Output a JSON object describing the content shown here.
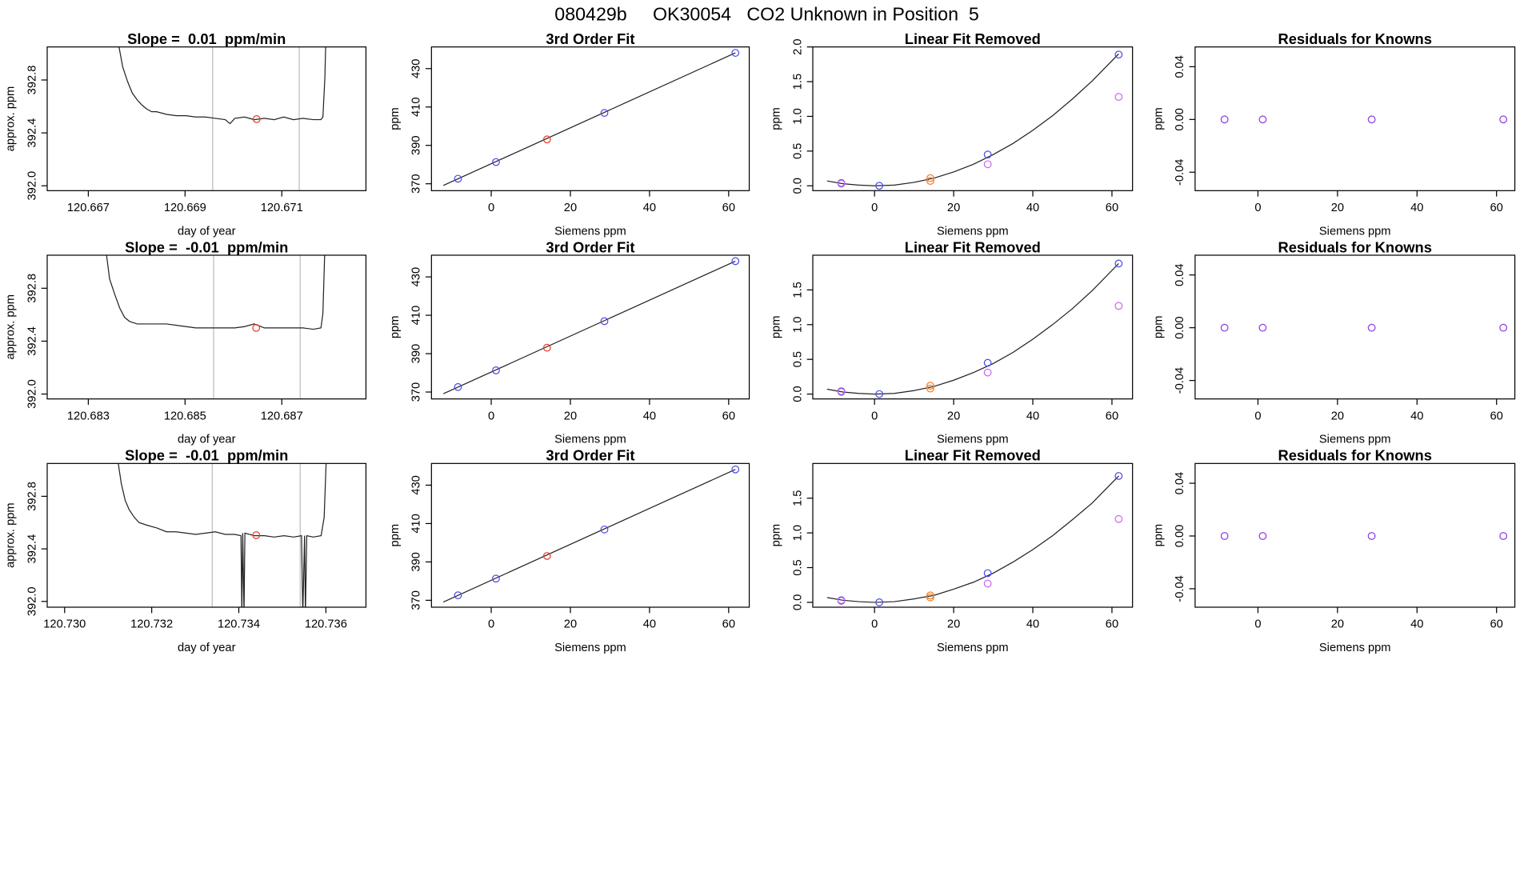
{
  "title": "080429b     OK30054   CO2 Unknown in Position  5",
  "chart_data": [
    {
      "type": "line",
      "title": "Slope =  0.01  ppm/min",
      "xlabel": "day of year",
      "ylabel": "approx. ppm",
      "xlim": [
        120.66615,
        120.67274
      ],
      "ylim": [
        391.963,
        393.05
      ],
      "xticks": [
        120.667,
        120.669,
        120.671
      ],
      "yticks": [
        {
          "value": 392,
          "label": "392.0"
        },
        392.4,
        392.8
      ],
      "vlines": {
        "color": "#bbbbbb",
        "values": [
          120.66957,
          120.67136
        ]
      },
      "series": [
        {
          "type": "line",
          "color": "#222222",
          "x": [
            120.66761,
            120.66771,
            120.66781,
            120.66791,
            120.66801,
            120.66811,
            120.66821,
            120.66831,
            120.66841,
            120.66862,
            120.66882,
            120.66902,
            120.66922,
            120.66942,
            120.66963,
            120.66983,
            120.66993,
            120.67003,
            120.67023,
            120.67043,
            120.67064,
            120.67084,
            120.67104,
            120.67124,
            120.67144,
            120.67165,
            120.67181,
            120.67185,
            120.67189,
            120.67191
          ],
          "values": [
            393.1,
            392.9,
            392.79,
            392.7,
            392.65,
            392.61,
            392.58,
            392.56,
            392.56,
            392.54,
            392.53,
            392.53,
            392.52,
            392.52,
            392.51,
            392.5,
            392.47,
            392.51,
            392.52,
            392.5,
            392.51,
            392.5,
            392.52,
            392.5,
            392.51,
            392.5,
            392.5,
            392.52,
            392.81,
            393.1
          ]
        },
        {
          "type": "scatter",
          "color": "#e8392a",
          "x": [
            120.67048
          ],
          "values": [
            392.504
          ]
        }
      ]
    },
    {
      "type": "scatter",
      "title": "3rd Order Fit",
      "xlabel": "Siemens ppm",
      "ylabel": "ppm",
      "xlim": [
        -15.1,
        65.2
      ],
      "ylim": [
        366.4,
        441.3
      ],
      "xticks": [
        0,
        20,
        40,
        60
      ],
      "yticks": [
        370,
        390,
        410,
        430
      ],
      "series": [
        {
          "type": "line",
          "color": "#222222",
          "x": [
            -12.1,
            61.7
          ],
          "values": [
            369.1,
            438.2
          ]
        },
        {
          "type": "scatter",
          "color": "#4a4ae8",
          "x": [
            -8.4,
            1.2,
            28.6,
            61.7
          ],
          "values": [
            372.6,
            381.3,
            406.9,
            438.2
          ]
        },
        {
          "type": "scatter",
          "color": "#e8392a",
          "x": [
            14.1
          ],
          "values": [
            393.1
          ]
        }
      ]
    },
    {
      "type": "scatter",
      "title": "Linear Fit Removed",
      "xlabel": "Siemens ppm",
      "ylabel": "ppm",
      "xlim": [
        -15.6,
        65.2
      ],
      "ylim": [
        -0.07,
        2.0
      ],
      "xticks": [
        0,
        20,
        40,
        60
      ],
      "yticks": [
        {
          "value": 0,
          "label": "0.0"
        },
        0.5,
        {
          "value": 1,
          "label": "1.0"
        },
        1.5,
        {
          "value": 2,
          "label": "2.0"
        }
      ],
      "series": [
        {
          "type": "line",
          "color": "#222222",
          "x": [
            -12,
            -8,
            -4,
            0,
            5,
            10,
            15,
            20,
            25,
            30,
            35,
            40,
            45,
            50,
            55,
            61.7
          ],
          "values": [
            0.07,
            0.03,
            0.01,
            0,
            0.01,
            0.05,
            0.11,
            0.2,
            0.31,
            0.45,
            0.61,
            0.8,
            1.01,
            1.25,
            1.51,
            1.9
          ]
        },
        {
          "type": "scatter",
          "color": "#4a4ae8",
          "x": [
            -8.4,
            1.2,
            28.6,
            61.7
          ],
          "values": [
            0.04,
            0,
            0.45,
            1.89
          ]
        },
        {
          "type": "scatter",
          "color": "#f07a28",
          "x": [
            14.1,
            14.1
          ],
          "values": [
            0.11,
            0.07
          ]
        },
        {
          "type": "scatter",
          "color": "#cc66ee",
          "x": [
            -8.4,
            28.6,
            61.7
          ],
          "values": [
            0.03,
            0.31,
            1.28
          ]
        }
      ]
    },
    {
      "type": "scatter",
      "title": "Residuals for Knowns",
      "xlabel": "Siemens ppm",
      "ylabel": "ppm",
      "xlim": [
        -15.8,
        64.6
      ],
      "ylim": [
        -0.054,
        0.055
      ],
      "xticks": [
        0,
        20,
        40,
        60
      ],
      "yticks": [
        -0.04,
        {
          "value": 0,
          "label": "0.00"
        },
        0.04
      ],
      "series": [
        {
          "type": "scatter",
          "color": "#8a3ce0",
          "x": [
            -8.4,
            1.2,
            28.6,
            61.7
          ],
          "values": [
            0,
            0,
            0,
            0
          ]
        }
      ]
    },
    {
      "type": "line",
      "title": "Slope =  -0.01  ppm/min",
      "xlabel": "day of year",
      "ylabel": "approx. ppm",
      "xlim": [
        120.68215,
        120.68874
      ],
      "ylim": [
        391.963,
        393.05
      ],
      "xticks": [
        120.683,
        120.685,
        120.687
      ],
      "yticks": [
        {
          "value": 392,
          "label": "392.0"
        },
        392.4,
        392.8
      ],
      "vlines": {
        "color": "#bbbbbb",
        "values": [
          120.68559,
          120.68738
        ]
      },
      "series": [
        {
          "type": "line",
          "color": "#222222",
          "x": [
            120.68336,
            120.68344,
            120.68355,
            120.68365,
            120.68375,
            120.68385,
            120.68401,
            120.68421,
            120.68441,
            120.68462,
            120.68482,
            120.68502,
            120.68522,
            120.68542,
            120.68563,
            120.68583,
            120.68603,
            120.68623,
            120.68643,
            120.68664,
            120.68684,
            120.68704,
            120.68724,
            120.68744,
            120.68765,
            120.68781,
            120.68785,
            120.68789
          ],
          "values": [
            393.1,
            392.87,
            392.75,
            392.65,
            392.58,
            392.55,
            392.53,
            392.53,
            392.53,
            392.53,
            392.52,
            392.51,
            392.5,
            392.5,
            392.5,
            392.5,
            392.5,
            392.51,
            392.53,
            392.5,
            392.5,
            392.5,
            392.5,
            392.5,
            392.49,
            392.5,
            392.61,
            393.1
          ]
        },
        {
          "type": "scatter",
          "color": "#e8392a",
          "x": [
            120.68647
          ],
          "values": [
            392.5
          ]
        }
      ]
    },
    {
      "type": "scatter",
      "title": "3rd Order Fit",
      "xlabel": "Siemens ppm",
      "ylabel": "ppm",
      "xlim": [
        -15.1,
        65.2
      ],
      "ylim": [
        366.4,
        441.3
      ],
      "xticks": [
        0,
        20,
        40,
        60
      ],
      "yticks": [
        370,
        390,
        410,
        430
      ],
      "series": [
        {
          "type": "line",
          "color": "#222222",
          "x": [
            -12.1,
            61.7
          ],
          "values": [
            369.1,
            438.2
          ]
        },
        {
          "type": "scatter",
          "color": "#4a4ae8",
          "x": [
            -8.4,
            1.2,
            28.6,
            61.7
          ],
          "values": [
            372.6,
            381.3,
            406.9,
            438.2
          ]
        },
        {
          "type": "scatter",
          "color": "#e8392a",
          "x": [
            14.1
          ],
          "values": [
            393.1
          ]
        }
      ]
    },
    {
      "type": "scatter",
      "title": "Linear Fit Removed",
      "xlabel": "Siemens ppm",
      "ylabel": "ppm",
      "xlim": [
        -15.6,
        65.2
      ],
      "ylim": [
        -0.07,
        2.0
      ],
      "xticks": [
        0,
        20,
        40,
        60
      ],
      "yticks": [
        {
          "value": 0,
          "label": "0.0"
        },
        0.5,
        {
          "value": 1,
          "label": "1.0"
        },
        1.5
      ],
      "series": [
        {
          "type": "line",
          "color": "#222222",
          "x": [
            -12,
            -8,
            -4,
            0,
            5,
            10,
            15,
            20,
            25,
            30,
            35,
            40,
            45,
            50,
            55,
            61.7
          ],
          "values": [
            0.07,
            0.03,
            0.01,
            0,
            0.01,
            0.05,
            0.11,
            0.2,
            0.31,
            0.44,
            0.6,
            0.79,
            1.0,
            1.23,
            1.49,
            1.88
          ]
        },
        {
          "type": "scatter",
          "color": "#4a4ae8",
          "x": [
            -8.4,
            1.2,
            28.6,
            61.7
          ],
          "values": [
            0.04,
            0,
            0.45,
            1.88
          ]
        },
        {
          "type": "scatter",
          "color": "#f07a28",
          "x": [
            14.1,
            14.1
          ],
          "values": [
            0.12,
            0.08
          ]
        },
        {
          "type": "scatter",
          "color": "#cc66ee",
          "x": [
            -8.4,
            28.6,
            61.7
          ],
          "values": [
            0.03,
            0.31,
            1.27
          ]
        }
      ]
    },
    {
      "type": "scatter",
      "title": "Residuals for Knowns",
      "xlabel": "Siemens ppm",
      "ylabel": "ppm",
      "xlim": [
        -15.8,
        64.6
      ],
      "ylim": [
        -0.054,
        0.055
      ],
      "xticks": [
        0,
        20,
        40,
        60
      ],
      "yticks": [
        -0.04,
        {
          "value": 0,
          "label": "0.00"
        },
        0.04
      ],
      "series": [
        {
          "type": "scatter",
          "color": "#8a3ce0",
          "x": [
            -8.4,
            1.2,
            28.6,
            61.7
          ],
          "values": [
            0,
            0,
            0,
            0
          ]
        }
      ]
    },
    {
      "type": "line",
      "title": "Slope =  -0.01  ppm/min",
      "xlabel": "day of year",
      "ylabel": "approx. ppm",
      "xlim": [
        120.7296,
        120.73692
      ],
      "ylim": [
        391.956,
        393.05
      ],
      "xticks": [
        {
          "value": 120.73,
          "label": "120.730"
        },
        120.732,
        120.734,
        120.736
      ],
      "yticks": [
        {
          "value": 392,
          "label": "392.0"
        },
        392.4,
        392.8
      ],
      "vlines": {
        "color": "#bbbbbb",
        "values": [
          120.73339,
          120.73541
        ]
      },
      "series": [
        {
          "type": "line",
          "color": "#222222",
          "x": [
            120.73121,
            120.7313,
            120.73139,
            120.73148,
            120.7316,
            120.73171,
            120.73189,
            120.73211,
            120.73234,
            120.73256,
            120.73279,
            120.73301,
            120.73324,
            120.73346,
            120.73369,
            120.73391,
            120.73405,
            120.73407,
            120.73409,
            120.73412,
            120.73414,
            120.73436,
            120.73459,
            120.73481,
            120.73504,
            120.73526,
            120.73544,
            120.73547,
            120.73551,
            120.73553,
            120.73556,
            120.73571,
            120.73589,
            120.73596,
            120.73601
          ],
          "values": [
            393.1,
            392.9,
            392.77,
            392.7,
            392.64,
            392.6,
            392.58,
            392.56,
            392.53,
            392.53,
            392.52,
            392.51,
            392.52,
            392.53,
            392.51,
            392.51,
            392.5,
            391.9,
            392.52,
            391.9,
            392.52,
            392.5,
            392.5,
            392.49,
            392.5,
            392.49,
            392.5,
            391.9,
            392.5,
            391.9,
            392.5,
            392.49,
            392.5,
            392.64,
            393.1
          ]
        },
        {
          "type": "scatter",
          "color": "#e8392a",
          "x": [
            120.7344
          ],
          "values": [
            392.504
          ]
        }
      ]
    },
    {
      "type": "scatter",
      "title": "3rd Order Fit",
      "xlabel": "Siemens ppm",
      "ylabel": "ppm",
      "xlim": [
        -15.1,
        65.2
      ],
      "ylim": [
        366.4,
        441.3
      ],
      "xticks": [
        0,
        20,
        40,
        60
      ],
      "yticks": [
        370,
        390,
        410,
        430
      ],
      "series": [
        {
          "type": "line",
          "color": "#222222",
          "x": [
            -12.1,
            61.7
          ],
          "values": [
            369.1,
            438.2
          ]
        },
        {
          "type": "scatter",
          "color": "#4a4ae8",
          "x": [
            -8.4,
            1.2,
            28.6,
            61.7
          ],
          "values": [
            372.6,
            381.3,
            406.9,
            438.2
          ]
        },
        {
          "type": "scatter",
          "color": "#e8392a",
          "x": [
            14.1
          ],
          "values": [
            393.1
          ]
        }
      ]
    },
    {
      "type": "scatter",
      "title": "Linear Fit Removed",
      "xlabel": "Siemens ppm",
      "ylabel": "ppm",
      "xlim": [
        -15.6,
        65.2
      ],
      "ylim": [
        -0.07,
        2.0
      ],
      "xticks": [
        0,
        20,
        40,
        60
      ],
      "yticks": [
        {
          "value": 0,
          "label": "0.0"
        },
        0.5,
        {
          "value": 1,
          "label": "1.0"
        },
        1.5
      ],
      "series": [
        {
          "type": "line",
          "color": "#222222",
          "x": [
            -12,
            -8,
            -4,
            0,
            5,
            10,
            15,
            20,
            25,
            30,
            35,
            40,
            45,
            50,
            55,
            61.7
          ],
          "values": [
            0.07,
            0.03,
            0.01,
            0,
            0.01,
            0.05,
            0.1,
            0.19,
            0.29,
            0.42,
            0.58,
            0.76,
            0.96,
            1.19,
            1.43,
            1.82
          ]
        },
        {
          "type": "scatter",
          "color": "#4a4ae8",
          "x": [
            -8.4,
            1.2,
            28.6,
            61.7
          ],
          "values": [
            0.03,
            0,
            0.42,
            1.82
          ]
        },
        {
          "type": "scatter",
          "color": "#f07a28",
          "x": [
            14.1,
            14.1
          ],
          "values": [
            0.1,
            0.07
          ]
        },
        {
          "type": "scatter",
          "color": "#cc66ee",
          "x": [
            -8.4,
            28.6,
            61.7
          ],
          "values": [
            0.02,
            0.27,
            1.2
          ]
        }
      ]
    },
    {
      "type": "scatter",
      "title": "Residuals for Knowns",
      "xlabel": "Siemens ppm",
      "ylabel": "ppm",
      "xlim": [
        -15.8,
        64.6
      ],
      "ylim": [
        -0.054,
        0.055
      ],
      "xticks": [
        0,
        20,
        40,
        60
      ],
      "yticks": [
        -0.04,
        {
          "value": 0,
          "label": "0.00"
        },
        0.04
      ],
      "series": [
        {
          "type": "scatter",
          "color": "#8a3ce0",
          "x": [
            -8.4,
            1.2,
            28.6,
            61.7
          ],
          "values": [
            0,
            0,
            0,
            0
          ]
        }
      ]
    }
  ]
}
